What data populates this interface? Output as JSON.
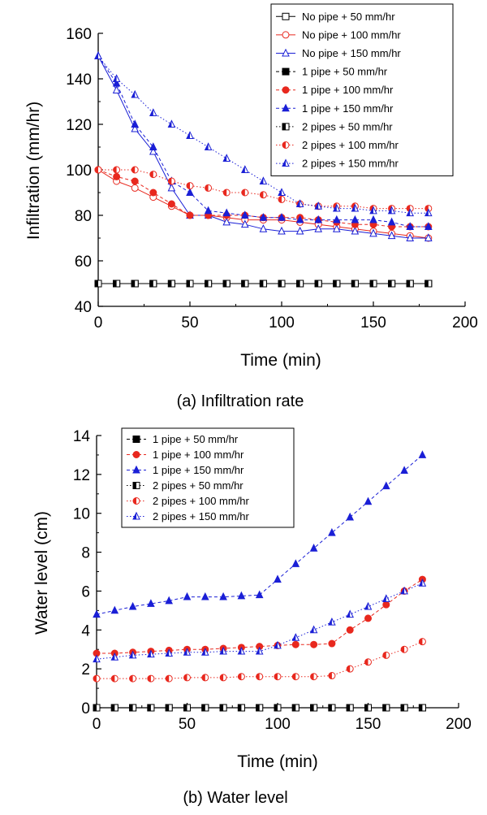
{
  "colors": {
    "black": "#000000",
    "red": "#e8281e",
    "blue": "#1a1fd6"
  },
  "chart_data": [
    {
      "type": "line",
      "title": "",
      "caption": "(a) Infiltration rate",
      "xlabel": "Time (min)",
      "ylabel": "Infiltration (mm/hr)",
      "xlim": [
        0,
        200
      ],
      "ylim": [
        40,
        160
      ],
      "xticks": [
        0,
        50,
        100,
        150,
        200
      ],
      "yticks": [
        40,
        60,
        80,
        100,
        120,
        140,
        160
      ],
      "legend_position": "top-right",
      "series": [
        {
          "name": "No pipe +   50 mm/hr",
          "color": "#000000",
          "marker": "square-open",
          "line": "solid",
          "x": [
            0,
            10,
            20,
            30,
            40,
            50,
            60,
            70,
            80,
            90,
            100,
            110,
            120,
            130,
            140,
            150,
            160,
            170,
            180
          ],
          "y": [
            50,
            50,
            50,
            50,
            50,
            50,
            50,
            50,
            50,
            50,
            50,
            50,
            50,
            50,
            50,
            50,
            50,
            50,
            50
          ]
        },
        {
          "name": "No pipe + 100 mm/hr",
          "color": "#e8281e",
          "marker": "circle-open",
          "line": "solid",
          "x": [
            0,
            10,
            20,
            30,
            40,
            50,
            60,
            70,
            80,
            90,
            100,
            110,
            120,
            130,
            140,
            150,
            160,
            170,
            180
          ],
          "y": [
            100,
            95,
            92,
            88,
            84,
            80,
            80,
            79,
            78,
            78,
            78,
            77,
            76,
            75,
            74,
            73,
            72,
            71,
            70
          ]
        },
        {
          "name": "No pipe + 150 mm/hr",
          "color": "#1a1fd6",
          "marker": "triangle-open",
          "line": "solid",
          "x": [
            0,
            10,
            20,
            30,
            40,
            50,
            60,
            70,
            80,
            90,
            100,
            110,
            120,
            130,
            140,
            150,
            160,
            170,
            180
          ],
          "y": [
            150,
            135,
            118,
            108,
            92,
            80,
            80,
            77,
            76,
            74,
            73,
            73,
            74,
            74,
            73,
            72,
            71,
            70,
            70
          ]
        },
        {
          "name": "1 pipe +   50 mm/hr",
          "color": "#000000",
          "marker": "square-filled",
          "line": "dash",
          "x": [
            0,
            10,
            20,
            30,
            40,
            50,
            60,
            70,
            80,
            90,
            100,
            110,
            120,
            130,
            140,
            150,
            160,
            170,
            180
          ],
          "y": [
            50,
            50,
            50,
            50,
            50,
            50,
            50,
            50,
            50,
            50,
            50,
            50,
            50,
            50,
            50,
            50,
            50,
            50,
            50
          ]
        },
        {
          "name": "1 pipe + 100 mm/hr",
          "color": "#e8281e",
          "marker": "circle-filled",
          "line": "dash",
          "x": [
            0,
            10,
            20,
            30,
            40,
            50,
            60,
            70,
            80,
            90,
            100,
            110,
            120,
            130,
            140,
            150,
            160,
            170,
            180
          ],
          "y": [
            100,
            97,
            95,
            90,
            85,
            80,
            80,
            80,
            80,
            79,
            79,
            79,
            78,
            77,
            76,
            76,
            75,
            75,
            75
          ]
        },
        {
          "name": "1 pipe + 150 mm/hr",
          "color": "#1a1fd6",
          "marker": "triangle-filled",
          "line": "dash",
          "x": [
            0,
            10,
            20,
            30,
            40,
            50,
            60,
            70,
            80,
            90,
            100,
            110,
            120,
            130,
            140,
            150,
            160,
            170,
            180
          ],
          "y": [
            150,
            138,
            120,
            110,
            95,
            90,
            82,
            81,
            80,
            79,
            79,
            78,
            78,
            78,
            78,
            78,
            77,
            75,
            75
          ]
        },
        {
          "name": "2 pipes +   50 mm/hr",
          "color": "#000000",
          "marker": "square-half",
          "line": "dot",
          "x": [
            0,
            10,
            20,
            30,
            40,
            50,
            60,
            70,
            80,
            90,
            100,
            110,
            120,
            130,
            140,
            150,
            160,
            170,
            180
          ],
          "y": [
            50,
            50,
            50,
            50,
            50,
            50,
            50,
            50,
            50,
            50,
            50,
            50,
            50,
            50,
            50,
            50,
            50,
            50,
            50
          ]
        },
        {
          "name": "2 pipes + 100 mm/hr",
          "color": "#e8281e",
          "marker": "circle-half",
          "line": "dot",
          "x": [
            0,
            10,
            20,
            30,
            40,
            50,
            60,
            70,
            80,
            90,
            100,
            110,
            120,
            130,
            140,
            150,
            160,
            170,
            180
          ],
          "y": [
            100,
            100,
            100,
            98,
            95,
            93,
            92,
            90,
            90,
            89,
            87,
            85,
            84,
            84,
            84,
            83,
            83,
            83,
            83
          ]
        },
        {
          "name": "2 pipes + 150 mm/hr",
          "color": "#1a1fd6",
          "marker": "triangle-half",
          "line": "dot",
          "x": [
            0,
            10,
            20,
            30,
            40,
            50,
            60,
            70,
            80,
            90,
            100,
            110,
            120,
            130,
            140,
            150,
            160,
            170,
            180
          ],
          "y": [
            150,
            140,
            133,
            125,
            120,
            115,
            110,
            105,
            100,
            95,
            90,
            85,
            84,
            83,
            83,
            82,
            82,
            81,
            81
          ]
        }
      ]
    },
    {
      "type": "line",
      "title": "",
      "caption": "(b) Water level",
      "xlabel": "Time (min)",
      "ylabel": "Water level (cm)",
      "xlim": [
        0,
        200
      ],
      "ylim": [
        0,
        14
      ],
      "xticks": [
        0,
        50,
        100,
        150,
        200
      ],
      "yticks": [
        0,
        2,
        4,
        6,
        8,
        10,
        12,
        14
      ],
      "legend_position": "top-left",
      "series": [
        {
          "name": "1 pipe +   50 mm/hr",
          "color": "#000000",
          "marker": "square-filled",
          "line": "dash",
          "x": [
            0,
            10,
            20,
            30,
            40,
            50,
            60,
            70,
            80,
            90,
            100,
            110,
            120,
            130,
            140,
            150,
            160,
            170,
            180
          ],
          "y": [
            0,
            0,
            0,
            0,
            0,
            0,
            0,
            0,
            0,
            0,
            0,
            0,
            0,
            0,
            0,
            0,
            0,
            0,
            0
          ]
        },
        {
          "name": "1 pipe + 100 mm/hr",
          "color": "#e8281e",
          "marker": "circle-filled",
          "line": "dash",
          "x": [
            0,
            10,
            20,
            30,
            40,
            50,
            60,
            70,
            80,
            90,
            100,
            110,
            120,
            130,
            140,
            150,
            160,
            170,
            180
          ],
          "y": [
            2.8,
            2.8,
            2.85,
            2.9,
            2.95,
            3.0,
            3.0,
            3.05,
            3.1,
            3.15,
            3.2,
            3.25,
            3.25,
            3.3,
            4.0,
            4.6,
            5.3,
            6.0,
            6.6
          ]
        },
        {
          "name": "1 pipe + 150 mm/hr",
          "color": "#1a1fd6",
          "marker": "triangle-filled",
          "line": "dash",
          "x": [
            0,
            10,
            20,
            30,
            40,
            50,
            60,
            70,
            80,
            90,
            100,
            110,
            120,
            130,
            140,
            150,
            160,
            170,
            180
          ],
          "y": [
            4.8,
            5.0,
            5.2,
            5.35,
            5.5,
            5.7,
            5.7,
            5.7,
            5.75,
            5.8,
            6.6,
            7.4,
            8.2,
            9.0,
            9.8,
            10.6,
            11.4,
            12.2,
            13.0
          ]
        },
        {
          "name": "2 pipes +   50 mm/hr",
          "color": "#000000",
          "marker": "square-half",
          "line": "dot",
          "x": [
            0,
            10,
            20,
            30,
            40,
            50,
            60,
            70,
            80,
            90,
            100,
            110,
            120,
            130,
            140,
            150,
            160,
            170,
            180
          ],
          "y": [
            0,
            0,
            0,
            0,
            0,
            0,
            0,
            0,
            0,
            0,
            0,
            0,
            0,
            0,
            0,
            0,
            0,
            0,
            0
          ]
        },
        {
          "name": "2 pipes + 100 mm/hr",
          "color": "#e8281e",
          "marker": "circle-half",
          "line": "dot",
          "x": [
            0,
            10,
            20,
            30,
            40,
            50,
            60,
            70,
            80,
            90,
            100,
            110,
            120,
            130,
            140,
            150,
            160,
            170,
            180
          ],
          "y": [
            1.5,
            1.5,
            1.5,
            1.5,
            1.5,
            1.55,
            1.55,
            1.55,
            1.6,
            1.6,
            1.6,
            1.6,
            1.6,
            1.65,
            2.0,
            2.35,
            2.7,
            3.0,
            3.4
          ]
        },
        {
          "name": "2 pipes + 150 mm/hr",
          "color": "#1a1fd6",
          "marker": "triangle-half",
          "line": "dot",
          "x": [
            0,
            10,
            20,
            30,
            40,
            50,
            60,
            70,
            80,
            90,
            100,
            110,
            120,
            130,
            140,
            150,
            160,
            170,
            180
          ],
          "y": [
            2.5,
            2.6,
            2.7,
            2.75,
            2.8,
            2.85,
            2.85,
            2.9,
            2.9,
            2.9,
            3.2,
            3.6,
            4.0,
            4.4,
            4.8,
            5.2,
            5.6,
            6.0,
            6.4
          ]
        }
      ]
    }
  ]
}
